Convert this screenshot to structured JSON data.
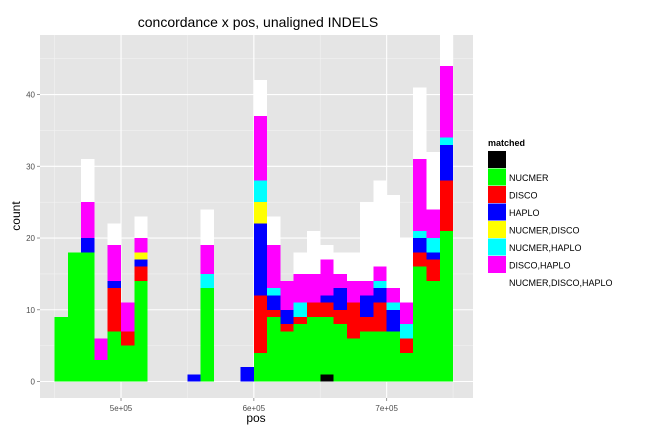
{
  "chart_data": {
    "type": "bar",
    "stacked": true,
    "title": "concordance x pos, unaligned INDELS",
    "xlabel": "pos",
    "ylabel": "count",
    "x_ticks": [
      {
        "value": 500000,
        "label": "5e+05"
      },
      {
        "value": 600000,
        "label": "6e+05"
      },
      {
        "value": 700000,
        "label": "7e+05"
      }
    ],
    "y_ticks": [
      {
        "value": 0,
        "label": "0"
      },
      {
        "value": 10,
        "label": "10"
      },
      {
        "value": 20,
        "label": "20"
      },
      {
        "value": 30,
        "label": "30"
      },
      {
        "value": 40,
        "label": "40"
      }
    ],
    "xlim": [
      439000,
      765000
    ],
    "ylim": [
      -2.3,
      48.3
    ],
    "bin_width": 10000,
    "grid": true,
    "legend": {
      "title": "matched",
      "placement": "right",
      "entries": [
        {
          "label": "",
          "color": "#000000"
        },
        {
          "label": "NUCMER",
          "color": "#00ff00"
        },
        {
          "label": "DISCO",
          "color": "#ff0000"
        },
        {
          "label": "HAPLO",
          "color": "#0000ff"
        },
        {
          "label": "NUCMER,DISCO",
          "color": "#ffff00"
        },
        {
          "label": "NUCMER,HAPLO",
          "color": "#00ffff"
        },
        {
          "label": "DISCO,HAPLO",
          "color": "#ff00ff"
        },
        {
          "label": "NUCMER,DISCO,HAPLO",
          "color": "#ffffff"
        }
      ]
    },
    "bins": [
      {
        "x": 455000,
        "stack": [
          0,
          9,
          0,
          0,
          0,
          0,
          0,
          0
        ]
      },
      {
        "x": 465000,
        "stack": [
          0,
          18,
          0,
          0,
          0,
          0,
          0,
          0
        ]
      },
      {
        "x": 475000,
        "stack": [
          0,
          18,
          0,
          2,
          0,
          0,
          5,
          6
        ]
      },
      {
        "x": 485000,
        "stack": [
          0,
          3,
          0,
          0,
          0,
          0,
          3,
          0
        ]
      },
      {
        "x": 495000,
        "stack": [
          0,
          7,
          6,
          1,
          0,
          0,
          5,
          3
        ]
      },
      {
        "x": 505000,
        "stack": [
          0,
          5,
          2,
          0,
          0,
          0,
          4,
          0
        ]
      },
      {
        "x": 515000,
        "stack": [
          0,
          14,
          2,
          1,
          1,
          0,
          2,
          3
        ]
      },
      {
        "x": 555000,
        "stack": [
          0,
          0,
          0,
          1,
          0,
          0,
          0,
          0
        ]
      },
      {
        "x": 565000,
        "stack": [
          0,
          13,
          0,
          0,
          0,
          2,
          4,
          5
        ]
      },
      {
        "x": 595000,
        "stack": [
          0,
          0,
          0,
          2,
          0,
          0,
          0,
          0
        ]
      },
      {
        "x": 605000,
        "stack": [
          0,
          4,
          8,
          10,
          3,
          3,
          9,
          5
        ]
      },
      {
        "x": 615000,
        "stack": [
          0,
          9,
          1,
          2,
          0,
          1,
          6,
          4
        ]
      },
      {
        "x": 625000,
        "stack": [
          0,
          7,
          1,
          2,
          0,
          0,
          4,
          0
        ]
      },
      {
        "x": 635000,
        "stack": [
          0,
          8,
          1,
          0,
          0,
          2,
          4,
          3
        ]
      },
      {
        "x": 645000,
        "stack": [
          0,
          9,
          2,
          0,
          0,
          0,
          4,
          6
        ]
      },
      {
        "x": 655000,
        "stack": [
          1,
          8,
          2,
          1,
          0,
          0,
          5,
          2
        ]
      },
      {
        "x": 665000,
        "stack": [
          0,
          8,
          2,
          3,
          0,
          0,
          2,
          3
        ]
      },
      {
        "x": 675000,
        "stack": [
          0,
          6,
          5,
          0,
          0,
          0,
          3,
          4
        ]
      },
      {
        "x": 685000,
        "stack": [
          0,
          7,
          2,
          3,
          0,
          0,
          2,
          11
        ]
      },
      {
        "x": 695000,
        "stack": [
          0,
          7,
          4,
          2,
          0,
          1,
          2,
          12
        ]
      },
      {
        "x": 705000,
        "stack": [
          0,
          7,
          0,
          3,
          0,
          1,
          2,
          13
        ]
      },
      {
        "x": 715000,
        "stack": [
          0,
          4,
          2,
          0,
          0,
          2,
          3,
          9
        ]
      },
      {
        "x": 725000,
        "stack": [
          0,
          16,
          2,
          2,
          0,
          1,
          10,
          10
        ]
      },
      {
        "x": 735000,
        "stack": [
          0,
          14,
          3,
          1,
          0,
          2,
          4,
          8
        ]
      },
      {
        "x": 745000,
        "stack": [
          0,
          21,
          7,
          5,
          0,
          1,
          10,
          5
        ]
      }
    ]
  }
}
